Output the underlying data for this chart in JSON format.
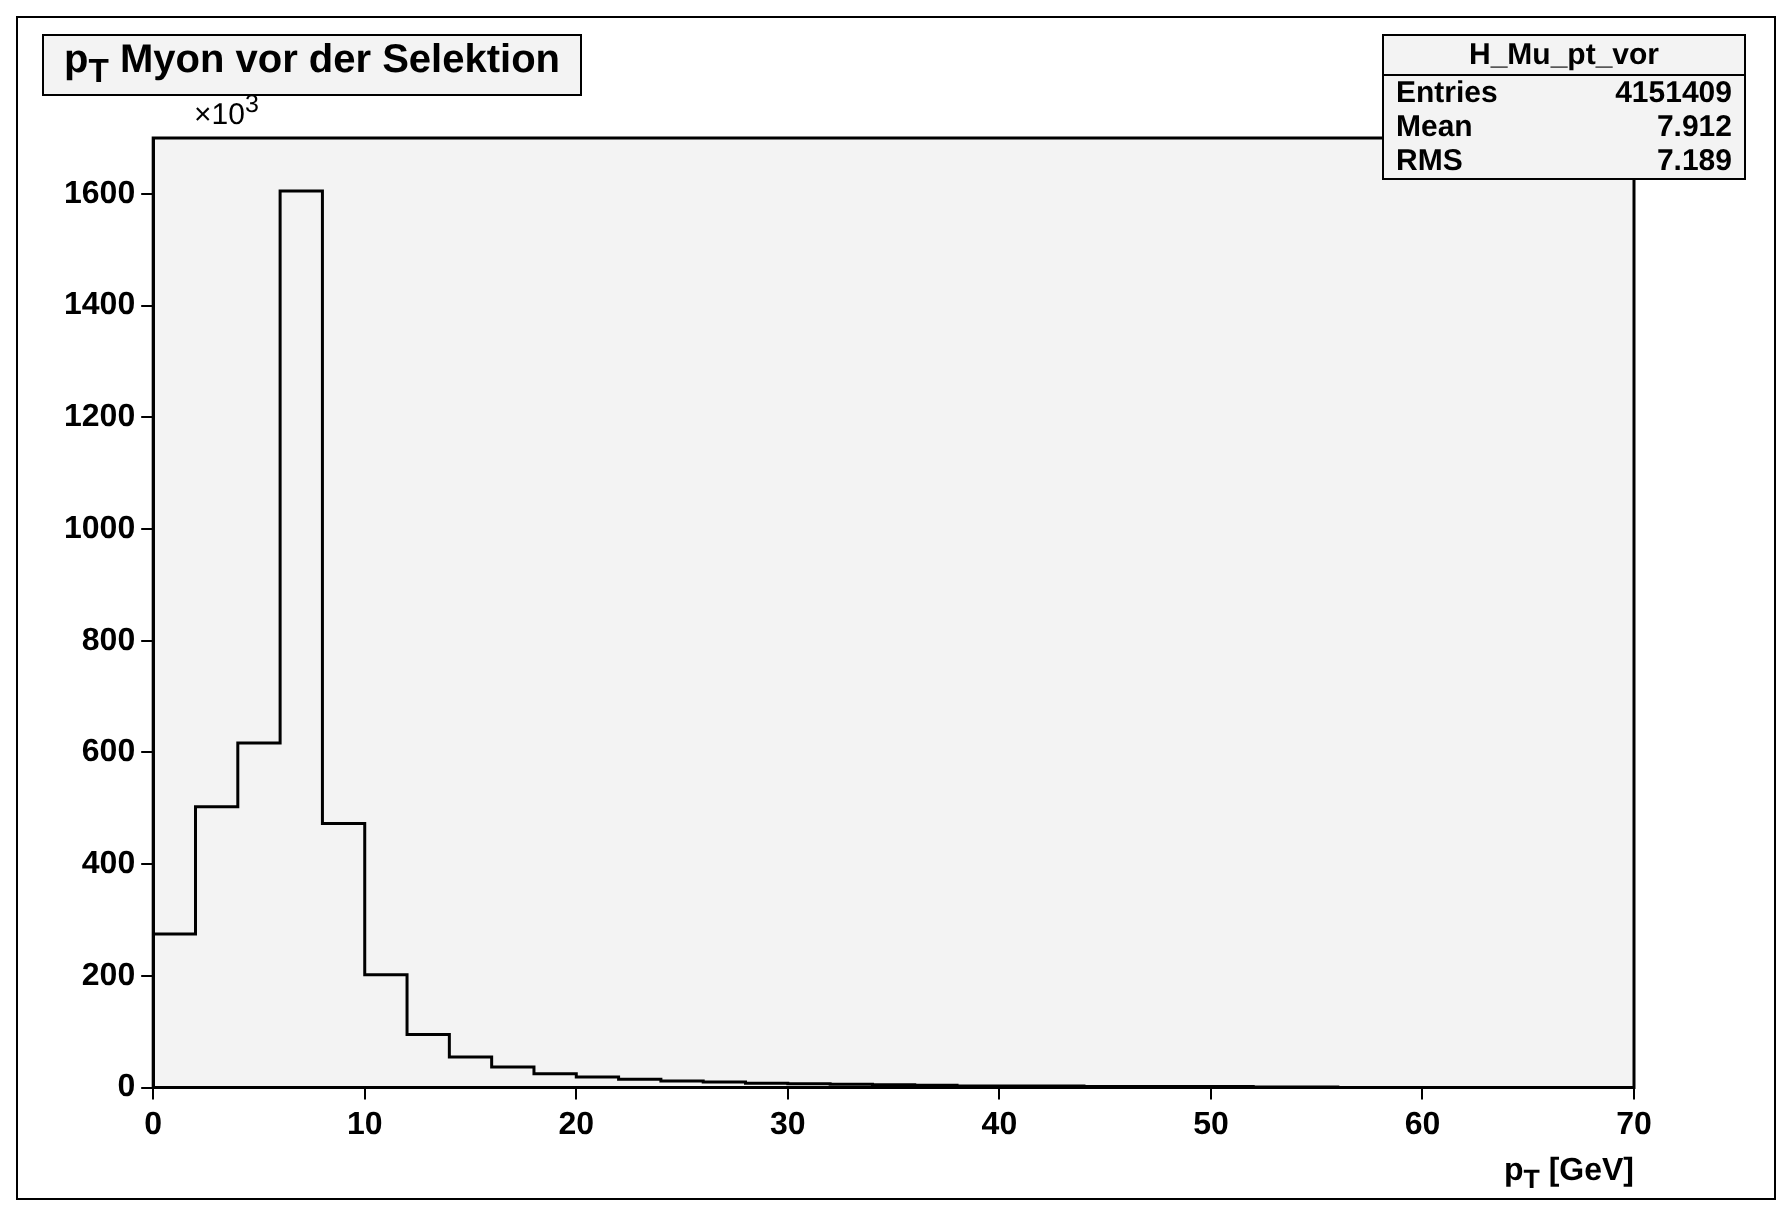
{
  "chart_data": {
    "type": "histogram",
    "title": "p$_{T}$ Myon vor der Selektion",
    "xlabel": "p$_{T}$ [GeV]",
    "bins": [
      0,
      2,
      4,
      6,
      8,
      10,
      12,
      14,
      16,
      18,
      20,
      22,
      24,
      26,
      28,
      30,
      32,
      34,
      36,
      38,
      40,
      42,
      44,
      46,
      48,
      50,
      52,
      54,
      56,
      58,
      60,
      62,
      64,
      66,
      68,
      70
    ],
    "values": [
      275,
      503,
      617,
      1605,
      473,
      202,
      95,
      55,
      37,
      25,
      19,
      15,
      12,
      10,
      8,
      7,
      6,
      5,
      4,
      3,
      3,
      3,
      2,
      2,
      2,
      2,
      1,
      1,
      0,
      0,
      0,
      0,
      0,
      0,
      0
    ],
    "color": "#000000",
    "xlim": [
      0,
      70
    ],
    "xticks": [
      0,
      10,
      20,
      30,
      40,
      50,
      60,
      70
    ],
    "ylim": [
      0,
      1700
    ],
    "yticks": [
      0,
      200,
      400,
      600,
      800,
      1000,
      1200,
      1400,
      1600
    ],
    "grid": false,
    "legend": false,
    "annotations": [
      "×10$^{3}$",
      "H_Mu_pt_vor",
      "Entries 4151409",
      "Mean 7.912",
      "RMS 7.189"
    ]
  }
}
